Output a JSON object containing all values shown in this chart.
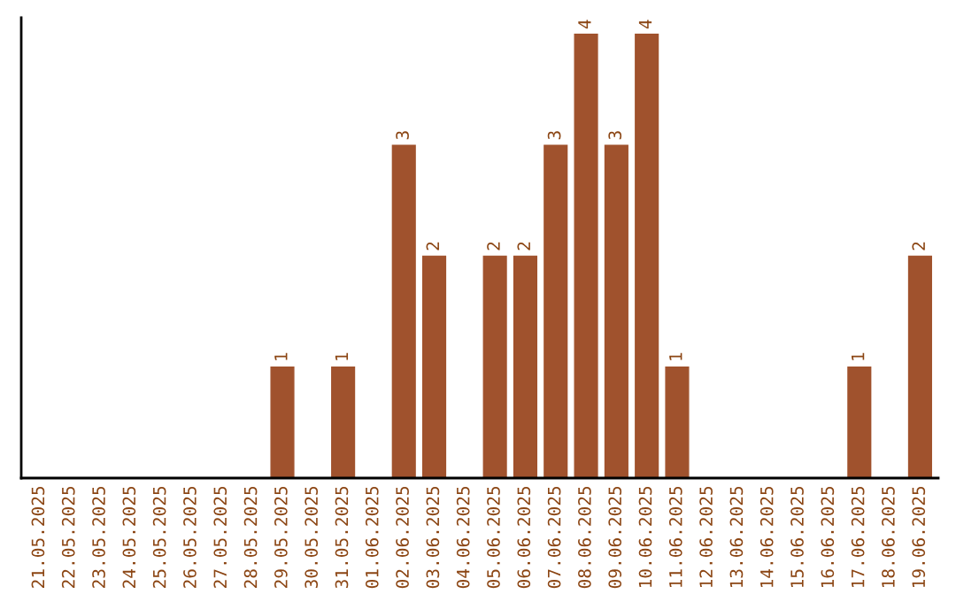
{
  "chart_data": {
    "type": "bar",
    "categories": [
      "21.05.2025",
      "22.05.2025",
      "23.05.2025",
      "24.05.2025",
      "25.05.2025",
      "26.05.2025",
      "27.05.2025",
      "28.05.2025",
      "29.05.2025",
      "30.05.2025",
      "31.05.2025",
      "01.06.2025",
      "02.06.2025",
      "03.06.2025",
      "04.06.2025",
      "05.06.2025",
      "06.06.2025",
      "07.06.2025",
      "08.06.2025",
      "09.06.2025",
      "10.06.2025",
      "11.06.2025",
      "12.06.2025",
      "13.06.2025",
      "14.06.2025",
      "15.06.2025",
      "16.06.2025",
      "17.06.2025",
      "18.06.2025",
      "19.06.2025"
    ],
    "values": [
      0,
      0,
      0,
      0,
      0,
      0,
      0,
      0,
      1,
      0,
      1,
      0,
      3,
      2,
      0,
      2,
      2,
      3,
      4,
      3,
      4,
      1,
      0,
      0,
      0,
      0,
      0,
      1,
      0,
      2
    ],
    "value_labels": [
      null,
      null,
      null,
      null,
      null,
      null,
      null,
      null,
      "1",
      null,
      "1",
      null,
      "3",
      "2",
      null,
      "2",
      "2",
      "3",
      "4",
      "3",
      "4",
      "1",
      null,
      null,
      null,
      null,
      null,
      "1",
      null,
      "2"
    ],
    "color": "#a0522d",
    "ylim": [
      0,
      4.15
    ],
    "tick_labels": "x",
    "grid": false,
    "legend": false
  }
}
